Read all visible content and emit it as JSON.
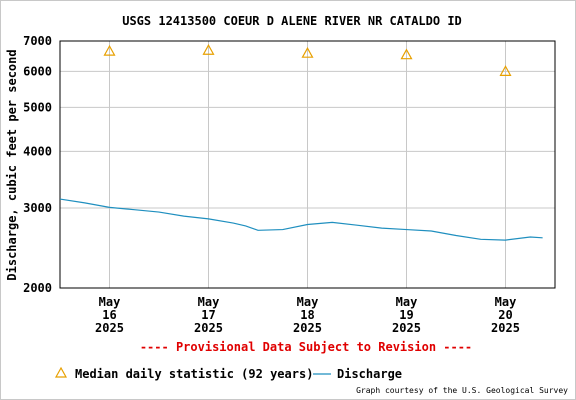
{
  "chart_data": {
    "type": "line",
    "title": "USGS 12413500 COEUR D ALENE RIVER NR CATALDO ID",
    "ylabel": "Discharge, cubic feet per second",
    "xlabel": "",
    "y_scale": "log",
    "ylim": [
      2000,
      7000
    ],
    "y_ticks": [
      {
        "value": 2000,
        "label": "2000"
      },
      {
        "value": 3000,
        "label": "3000"
      },
      {
        "value": 4000,
        "label": "4000"
      },
      {
        "value": 5000,
        "label": "5000"
      },
      {
        "value": 6000,
        "label": "6000"
      },
      {
        "value": 7000,
        "label": "7000"
      }
    ],
    "xlim": [
      "2025-05-15T12:00",
      "2025-05-20T12:00"
    ],
    "x_ticks": [
      {
        "value": "2025-05-16",
        "label": [
          "May",
          "16",
          "2025"
        ]
      },
      {
        "value": "2025-05-17",
        "label": [
          "May",
          "17",
          "2025"
        ]
      },
      {
        "value": "2025-05-18",
        "label": [
          "May",
          "18",
          "2025"
        ]
      },
      {
        "value": "2025-05-19",
        "label": [
          "May",
          "19",
          "2025"
        ]
      },
      {
        "value": "2025-05-20",
        "label": [
          "May",
          "20",
          "2025"
        ]
      }
    ],
    "grid": true,
    "series": [
      {
        "name": "Discharge",
        "color": "#1f8fbf",
        "points": [
          {
            "x": "2025-05-15T12:00",
            "y": 3140
          },
          {
            "x": "2025-05-15T18:00",
            "y": 3080
          },
          {
            "x": "2025-05-16T00:00",
            "y": 3010
          },
          {
            "x": "2025-05-16T06:00",
            "y": 2975
          },
          {
            "x": "2025-05-16T12:00",
            "y": 2940
          },
          {
            "x": "2025-05-16T18:00",
            "y": 2880
          },
          {
            "x": "2025-05-17T00:00",
            "y": 2840
          },
          {
            "x": "2025-05-17T06:00",
            "y": 2780
          },
          {
            "x": "2025-05-17T09:00",
            "y": 2740
          },
          {
            "x": "2025-05-17T12:00",
            "y": 2680
          },
          {
            "x": "2025-05-17T18:00",
            "y": 2690
          },
          {
            "x": "2025-05-18T00:00",
            "y": 2760
          },
          {
            "x": "2025-05-18T06:00",
            "y": 2790
          },
          {
            "x": "2025-05-18T12:00",
            "y": 2750
          },
          {
            "x": "2025-05-18T18:00",
            "y": 2710
          },
          {
            "x": "2025-05-19T00:00",
            "y": 2690
          },
          {
            "x": "2025-05-19T06:00",
            "y": 2670
          },
          {
            "x": "2025-05-19T12:00",
            "y": 2610
          },
          {
            "x": "2025-05-19T18:00",
            "y": 2560
          },
          {
            "x": "2025-05-20T00:00",
            "y": 2550
          },
          {
            "x": "2025-05-20T06:00",
            "y": 2590
          },
          {
            "x": "2025-05-20T09:00",
            "y": 2580
          }
        ]
      },
      {
        "name": "Median daily statistic (92 years)",
        "type": "scatter",
        "marker": "triangle",
        "color": "#e8a000",
        "points": [
          {
            "x": "2025-05-16",
            "y": 6650
          },
          {
            "x": "2025-05-17",
            "y": 6680
          },
          {
            "x": "2025-05-18",
            "y": 6580
          },
          {
            "x": "2025-05-19",
            "y": 6530
          },
          {
            "x": "2025-05-20",
            "y": 6000
          }
        ]
      }
    ],
    "legend_placement": "bottom",
    "legend": [
      {
        "label": "Median daily statistic (92 years)",
        "marker": "triangle",
        "color": "#e8a000"
      },
      {
        "label": "Discharge",
        "marker": "line",
        "color": "#1f8fbf"
      }
    ],
    "provisional_note": "---- Provisional Data Subject to Revision ----",
    "provisional_color": "#e00000",
    "credit": "Graph courtesy of the U.S. Geological Survey"
  }
}
